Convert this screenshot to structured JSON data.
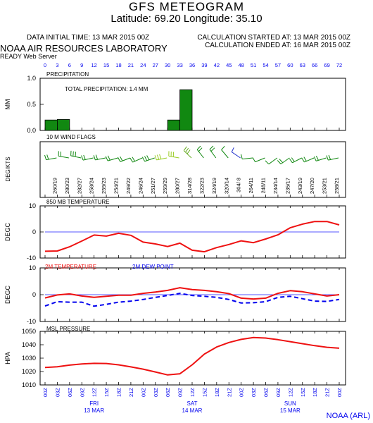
{
  "header": {
    "title": "GFS METEOGRAM",
    "location": "Latitude: 69.20 Longitude:  35.10",
    "data_initial_time": "DATA INITIAL TIME: 13 MAR 2015 00Z",
    "calc_started": "CALCULATION STARTED AT: 13 MAR 2015 00Z",
    "calc_ended": "CALCULATION ENDED AT: 16 MAR 2015 00Z",
    "lab_name": "NOAA AIR RESOURCES LABORATORY",
    "server": "READY Web Server"
  },
  "footer": {
    "credit": "NOAA (ARL)"
  },
  "colors": {
    "red": "#ee1111",
    "blue": "#0000ee",
    "green": "#118811",
    "zero_line": "#5555ff"
  },
  "forecast_hours": [
    "0",
    "3",
    "6",
    "9",
    "12",
    "15",
    "18",
    "21",
    "24",
    "27",
    "30",
    "33",
    "36",
    "39",
    "42",
    "45",
    "48",
    "51",
    "54",
    "57",
    "60",
    "63",
    "66",
    "69",
    "72"
  ],
  "time_labels": [
    "00Z",
    "03Z",
    "06Z",
    "09Z",
    "12Z",
    "15Z",
    "18Z",
    "21Z",
    "00Z",
    "03Z",
    "06Z",
    "09Z",
    "12Z",
    "15Z",
    "18Z",
    "21Z",
    "00Z",
    "03Z",
    "06Z",
    "09Z",
    "12Z",
    "15Z",
    "18Z",
    "21Z",
    "00Z"
  ],
  "day_labels": [
    {
      "day": "FRI",
      "date": "13 MAR",
      "hour": 12
    },
    {
      "day": "SAT",
      "date": "14 MAR",
      "hour": 36
    },
    {
      "day": "SUN",
      "date": "15 MAR",
      "hour": 60
    }
  ],
  "chart_data": [
    {
      "type": "bar",
      "panel_title": "PRECIPITATION",
      "annotation": "TOTAL PRECIPITATION:   1.4 MM",
      "ylabel": "MM",
      "ylim": [
        0,
        1.0
      ],
      "yticks": [
        "0.0",
        "0.5",
        "1.0"
      ],
      "hours": [
        3,
        6,
        33,
        36
      ],
      "values": [
        0.2,
        0.21,
        0.2,
        0.78
      ],
      "color": "#118811"
    },
    {
      "type": "table",
      "panel_title": "10 M  WIND FLAGS",
      "ylabel": "DEG/KTS",
      "winds": [
        "260/19",
        "280/23",
        "282/27",
        "258/24",
        "259/23",
        "254/21",
        "249/22",
        "246/24",
        "251/27",
        "259/29",
        "280/27",
        "314/28",
        "322/23",
        "324/19",
        "320/14",
        "304/ 8",
        "264/11",
        "248/11",
        "234/14",
        "235/17",
        "243/19",
        "247/20",
        "253/21",
        "258/21"
      ],
      "flag_colors": [
        "#118811",
        "#118811",
        "#118811",
        "#118811",
        "#118811",
        "#118811",
        "#118811",
        "#118811",
        "#118811",
        "#99cc22",
        "#99cc22",
        "#66aa22",
        "#118811",
        "#118811",
        "#118811",
        "#2233cc",
        "#118811",
        "#118811",
        "#118811",
        "#118811",
        "#118811",
        "#118811",
        "#118811",
        "#118811"
      ]
    },
    {
      "type": "line",
      "panel_title": "850 MB  TEMPERATURE",
      "ylabel": "DEGC",
      "ylim": [
        -10,
        10
      ],
      "yticks": [
        "-10",
        "0",
        "10"
      ],
      "series": [
        {
          "color": "#ee1111",
          "x": [
            0,
            3,
            6,
            9,
            12,
            15,
            18,
            21,
            24,
            27,
            30,
            33,
            36,
            39,
            42,
            45,
            48,
            51,
            54,
            57,
            60,
            63,
            66,
            69,
            72
          ],
          "values": [
            -7.4,
            -7.3,
            -5.7,
            -3.5,
            -1.2,
            -1.6,
            -0.5,
            -1.3,
            -3.9,
            -4.6,
            -5.6,
            -4.3,
            -7.0,
            -7.6,
            -6.0,
            -4.8,
            -3.4,
            -4.1,
            -2.7,
            -1.1,
            1.6,
            3.0,
            4.0,
            4.0,
            2.7
          ]
        }
      ]
    },
    {
      "type": "line",
      "panel_title": "",
      "legend": [
        "2M TEMPERATURE",
        "2M   DEW POINT"
      ],
      "ylabel": "DEGC",
      "ylim": [
        -10,
        10
      ],
      "yticks": [
        "-10",
        "0",
        "10"
      ],
      "series": [
        {
          "name": "2M TEMPERATURE",
          "color": "#ee1111",
          "dashed": false,
          "x": [
            0,
            3,
            6,
            9,
            12,
            15,
            18,
            21,
            24,
            27,
            30,
            33,
            36,
            39,
            42,
            45,
            48,
            51,
            54,
            57,
            60,
            63,
            66,
            69,
            72
          ],
          "values": [
            -1.2,
            -0.1,
            0.3,
            -0.5,
            -1.0,
            -0.6,
            -0.2,
            -0.2,
            0.5,
            1.0,
            1.6,
            2.6,
            1.9,
            1.6,
            1.1,
            0.4,
            -1.3,
            -1.6,
            -1.3,
            0.5,
            1.5,
            1.1,
            0.3,
            -0.5,
            0.0
          ]
        },
        {
          "name": "2M   DEW POINT",
          "color": "#0000ee",
          "dashed": true,
          "x": [
            0,
            3,
            6,
            9,
            12,
            15,
            18,
            21,
            24,
            27,
            30,
            33,
            36,
            39,
            42,
            45,
            48,
            51,
            54,
            57,
            60,
            63,
            66,
            69,
            72
          ],
          "values": [
            -4.2,
            -2.6,
            -2.8,
            -2.8,
            -4.3,
            -3.6,
            -2.8,
            -2.4,
            -1.8,
            -1.0,
            -0.3,
            0.5,
            -0.3,
            -0.6,
            -1.0,
            -1.8,
            -3.1,
            -3.0,
            -2.6,
            -1.0,
            -0.6,
            -1.5,
            -2.4,
            -2.5,
            -1.8
          ]
        }
      ]
    },
    {
      "type": "line",
      "panel_title": "MSL PRESSURE",
      "ylabel": "HPA",
      "ylim": [
        1010,
        1050
      ],
      "yticks": [
        "1010",
        "1020",
        "1030",
        "1040",
        "1050"
      ],
      "series": [
        {
          "color": "#ee1111",
          "x": [
            0,
            3,
            6,
            9,
            12,
            15,
            18,
            21,
            24,
            27,
            30,
            33,
            36,
            39,
            42,
            45,
            48,
            51,
            54,
            57,
            60,
            63,
            66,
            69,
            72
          ],
          "values": [
            1023,
            1023.6,
            1024.8,
            1025.7,
            1026.1,
            1026.0,
            1025.0,
            1023.5,
            1021.8,
            1019.7,
            1017.5,
            1018.3,
            1025.0,
            1033.0,
            1038.3,
            1041.7,
            1044.0,
            1045.4,
            1045.0,
            1043.8,
            1042.3,
            1040.8,
            1039.3,
            1038.1,
            1037.4
          ]
        }
      ]
    }
  ]
}
